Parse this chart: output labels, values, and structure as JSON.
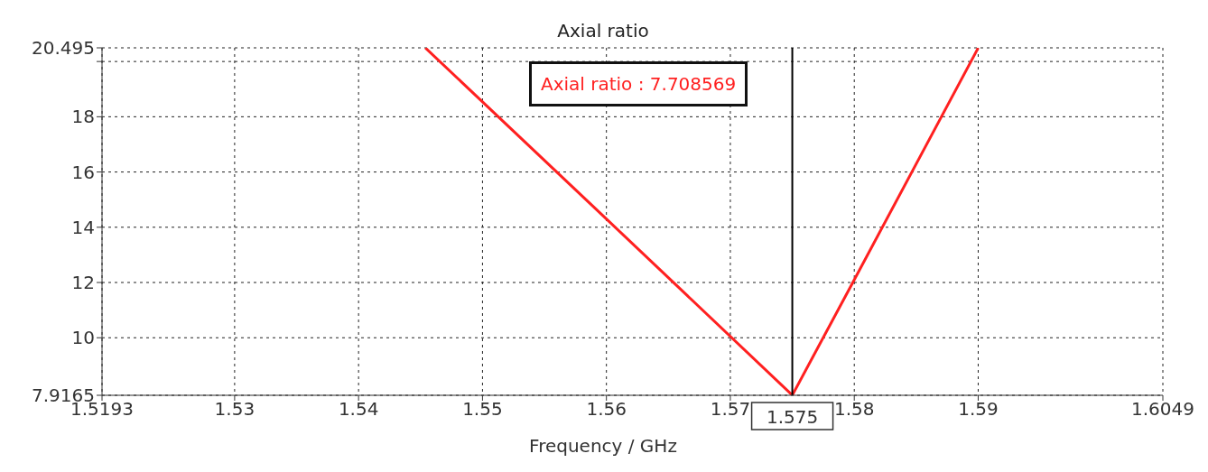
{
  "chart_data": {
    "type": "line",
    "title": "Axial ratio",
    "xlabel": "Frequency / GHz",
    "x": [
      1.5454,
      1.56,
      1.575,
      1.58,
      1.59
    ],
    "series": [
      {
        "color": "#ff2020",
        "values": [
          20.49,
          14.3,
          7.92,
          12.1,
          20.49
        ]
      }
    ],
    "xlim": [
      1.5193,
      1.6049
    ],
    "xticks": [
      1.5193,
      1.53,
      1.54,
      1.55,
      1.56,
      1.57,
      1.58,
      1.59,
      1.6049
    ],
    "ylim": [
      7.9165,
      20.495
    ],
    "yticks": [
      7.9165,
      10,
      12,
      14,
      16,
      18,
      {
        "value": 20,
        "label": null
      },
      20.495
    ],
    "ref_lines": [
      {
        "axis": "x",
        "value": 1.575,
        "label": "1.575",
        "color": "#000000"
      }
    ],
    "annotations": [
      "Axial ratio : 7.708569"
    ],
    "grid": true,
    "marker": "none",
    "line_style": "solid"
  }
}
